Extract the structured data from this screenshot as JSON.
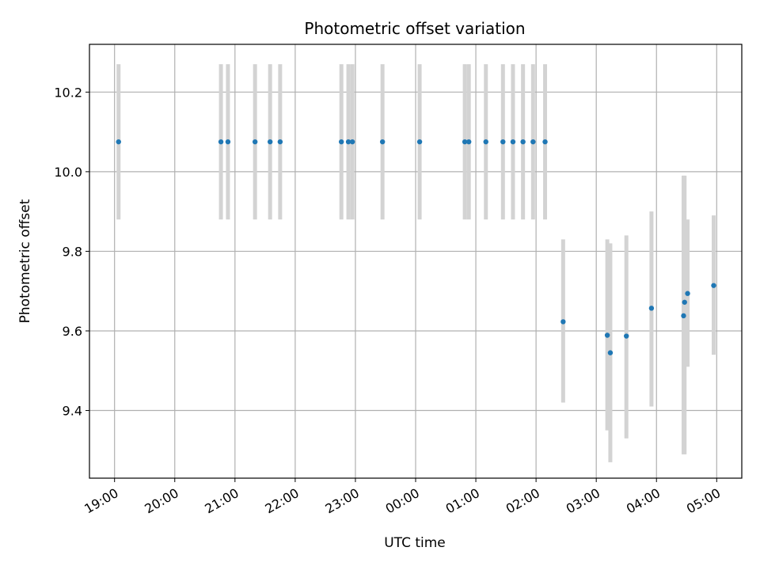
{
  "chart_data": {
    "type": "scatter",
    "title": "Photometric offset variation",
    "xlabel": "UTC time",
    "ylabel": "Photometric offset",
    "x_axis": {
      "kind": "time",
      "min": "18:35",
      "max": "05:25",
      "ticks": [
        "19:00",
        "20:00",
        "21:00",
        "22:00",
        "23:00",
        "00:00",
        "01:00",
        "02:00",
        "03:00",
        "04:00",
        "05:00"
      ]
    },
    "y_axis": {
      "min": 9.23,
      "max": 10.32,
      "ticks": [
        "9.4",
        "9.6",
        "9.8",
        "10.0",
        "10.2"
      ]
    },
    "grid": true,
    "colors": {
      "point": "#1f77b4",
      "errorbar": "#d3d3d3",
      "grid": "#b0b0b0"
    },
    "points": [
      {
        "x": "19:04",
        "y": 10.075,
        "err_low": 9.88,
        "err_high": 10.27
      },
      {
        "x": "20:46",
        "y": 10.075,
        "err_low": 9.88,
        "err_high": 10.27
      },
      {
        "x": "20:53",
        "y": 10.075,
        "err_low": 9.88,
        "err_high": 10.27
      },
      {
        "x": "21:20",
        "y": 10.075,
        "err_low": 9.88,
        "err_high": 10.27
      },
      {
        "x": "21:35",
        "y": 10.075,
        "err_low": 9.88,
        "err_high": 10.27
      },
      {
        "x": "21:45",
        "y": 10.075,
        "err_low": 9.88,
        "err_high": 10.27
      },
      {
        "x": "22:46",
        "y": 10.075,
        "err_low": 9.88,
        "err_high": 10.27
      },
      {
        "x": "22:53",
        "y": 10.075,
        "err_low": 9.88,
        "err_high": 10.27
      },
      {
        "x": "22:57",
        "y": 10.075,
        "err_low": 9.88,
        "err_high": 10.27
      },
      {
        "x": "23:27",
        "y": 10.075,
        "err_low": 9.88,
        "err_high": 10.27
      },
      {
        "x": "00:04",
        "y": 10.075,
        "err_low": 9.88,
        "err_high": 10.27
      },
      {
        "x": "00:49",
        "y": 10.075,
        "err_low": 9.88,
        "err_high": 10.27
      },
      {
        "x": "00:53",
        "y": 10.075,
        "err_low": 9.88,
        "err_high": 10.27
      },
      {
        "x": "01:10",
        "y": 10.075,
        "err_low": 9.88,
        "err_high": 10.27
      },
      {
        "x": "01:27",
        "y": 10.075,
        "err_low": 9.88,
        "err_high": 10.27
      },
      {
        "x": "01:37",
        "y": 10.075,
        "err_low": 9.88,
        "err_high": 10.27
      },
      {
        "x": "01:47",
        "y": 10.075,
        "err_low": 9.88,
        "err_high": 10.27
      },
      {
        "x": "01:57",
        "y": 10.075,
        "err_low": 9.88,
        "err_high": 10.27
      },
      {
        "x": "02:09",
        "y": 10.075,
        "err_low": 9.88,
        "err_high": 10.27
      },
      {
        "x": "02:27",
        "y": 9.623,
        "err_low": 9.42,
        "err_high": 9.83
      },
      {
        "x": "03:11",
        "y": 9.589,
        "err_low": 9.35,
        "err_high": 9.83
      },
      {
        "x": "03:14",
        "y": 9.545,
        "err_low": 9.27,
        "err_high": 9.82
      },
      {
        "x": "03:30",
        "y": 9.587,
        "err_low": 9.33,
        "err_high": 9.84
      },
      {
        "x": "03:55",
        "y": 9.657,
        "err_low": 9.41,
        "err_high": 9.9
      },
      {
        "x": "04:27",
        "y": 9.638,
        "err_low": 9.29,
        "err_high": 9.99
      },
      {
        "x": "04:28",
        "y": 9.672,
        "err_low": 9.29,
        "err_high": 9.99
      },
      {
        "x": "04:31",
        "y": 9.694,
        "err_low": 9.51,
        "err_high": 9.88
      },
      {
        "x": "04:57",
        "y": 9.714,
        "err_low": 9.54,
        "err_high": 9.89
      }
    ]
  }
}
